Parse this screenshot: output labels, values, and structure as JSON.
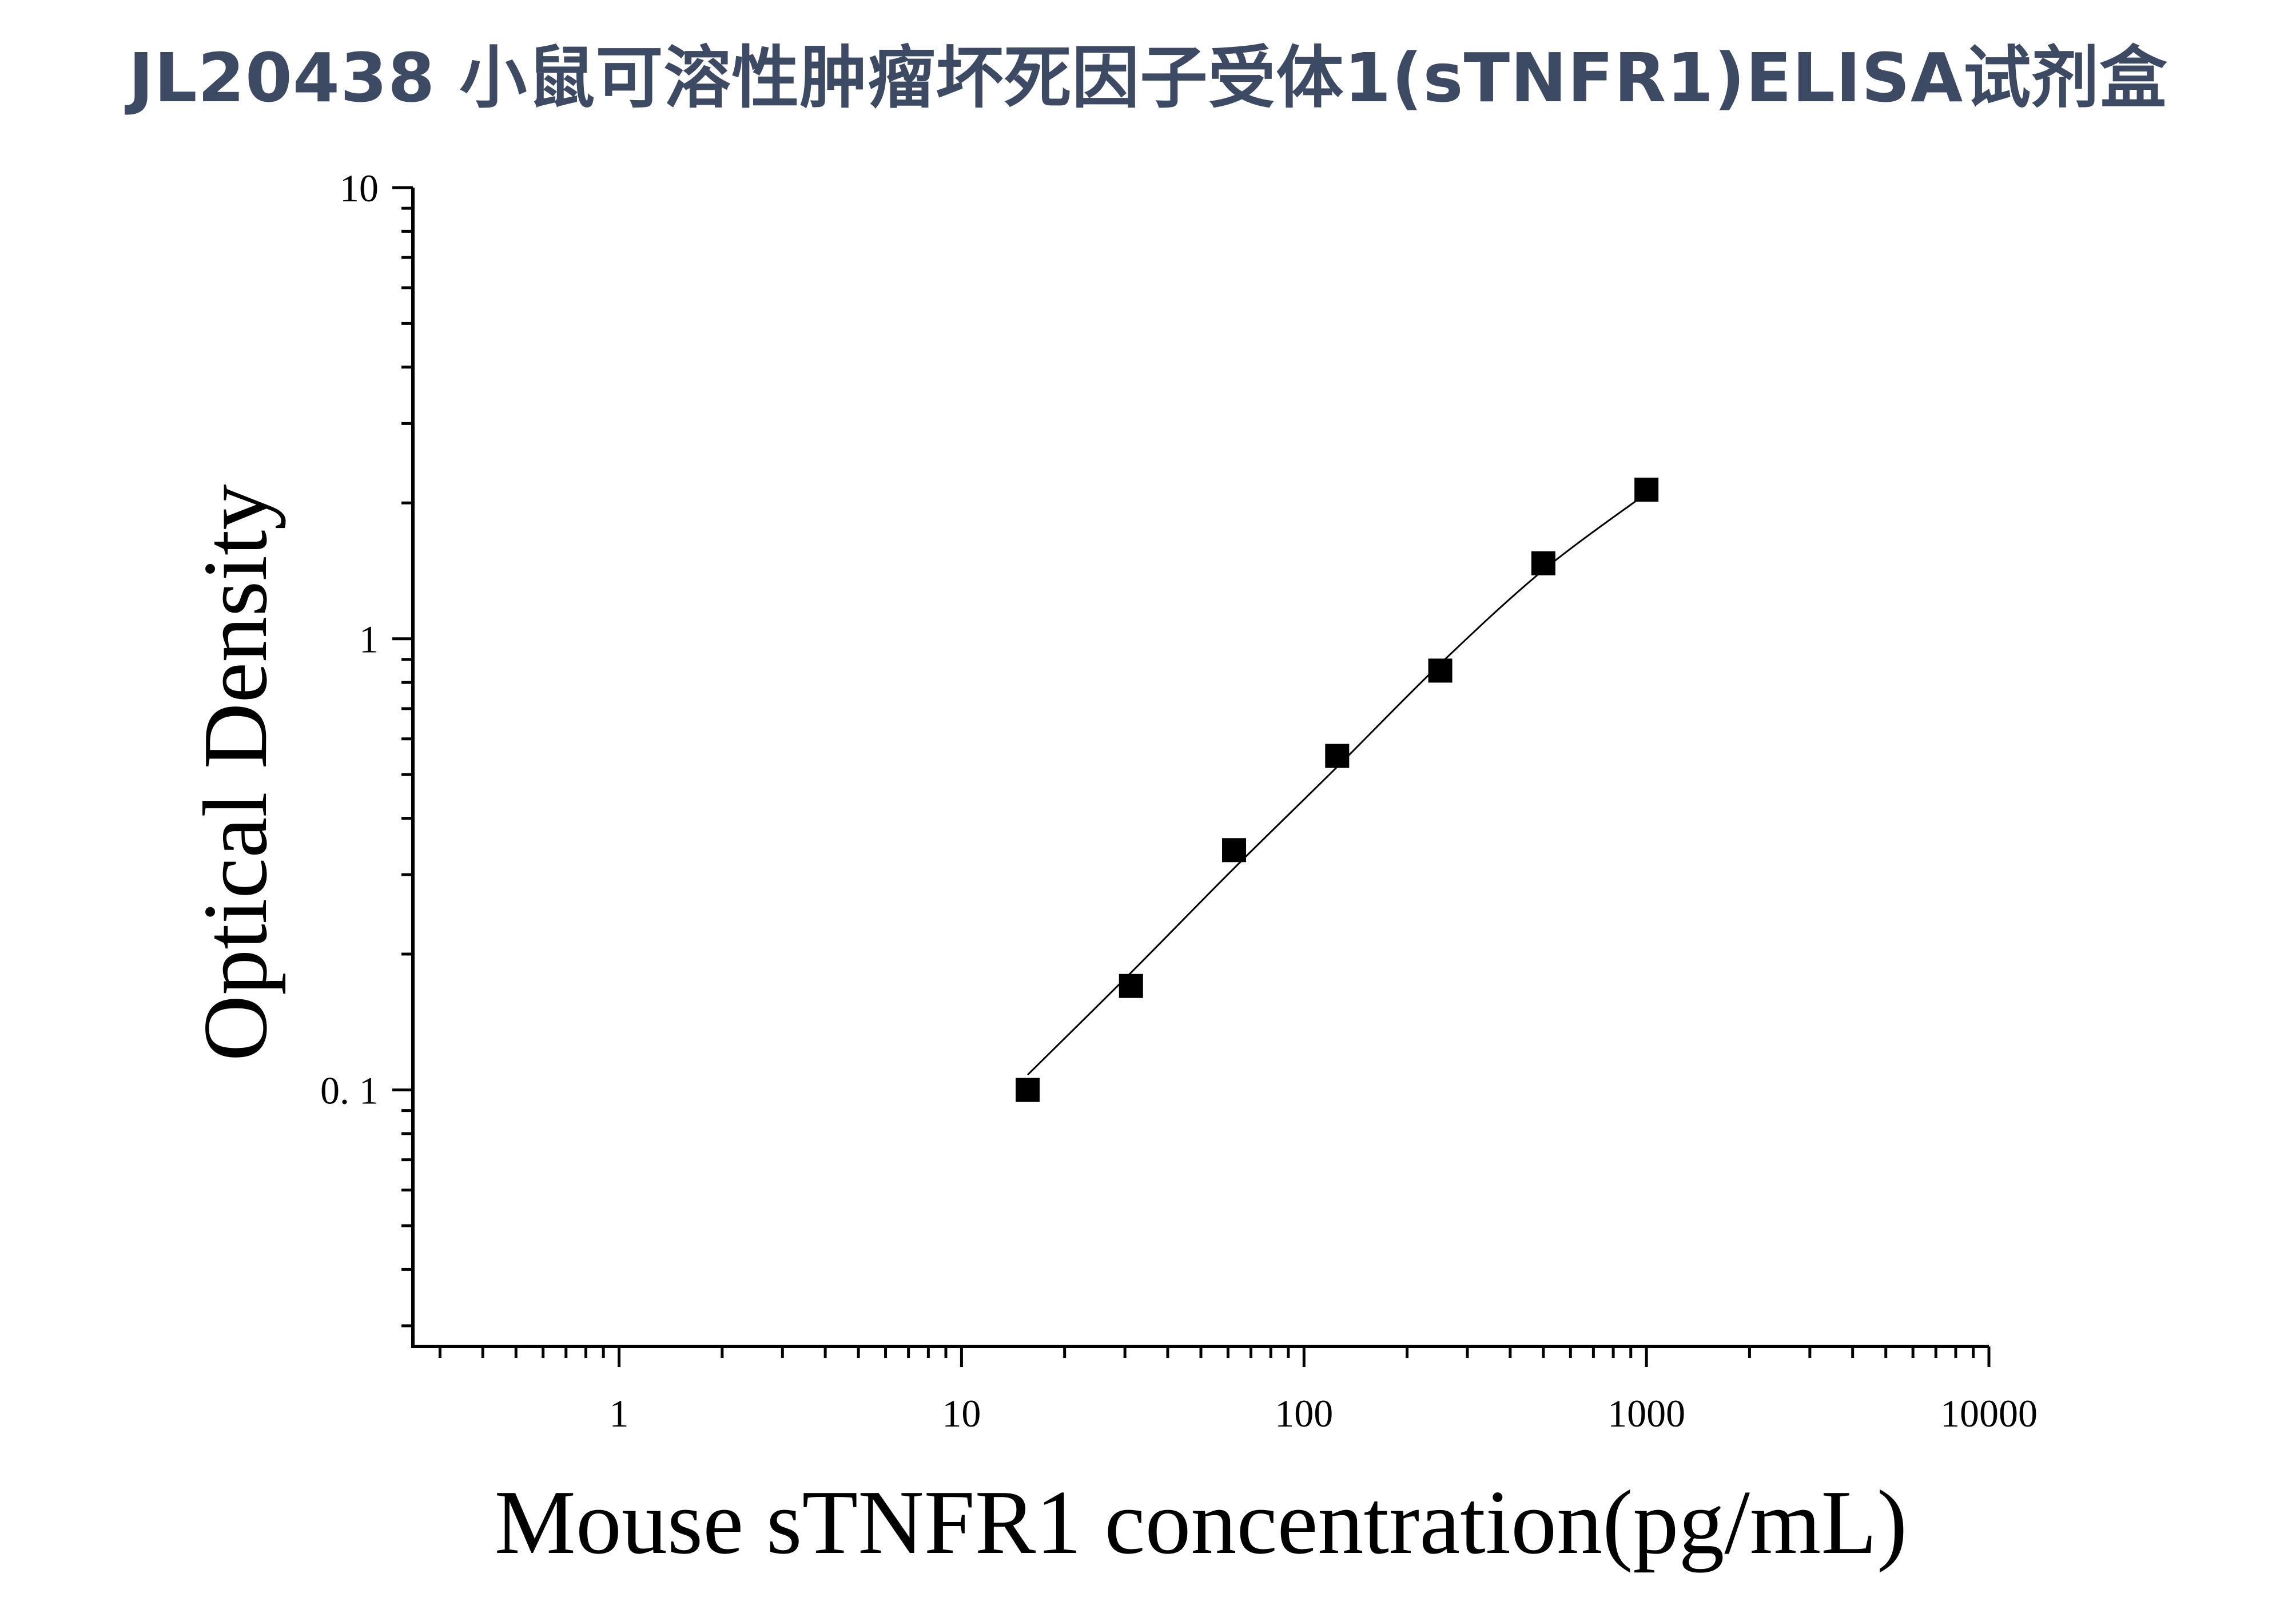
{
  "chart_data": {
    "type": "scatter",
    "title": "JL20438 小鼠可溶性肿瘤坏死因子受体1(sTNFR1)ELISA试剂盒",
    "xlabel": "Mouse sTNFR1 concentration(pg/mL)",
    "ylabel": "Optical Density",
    "x_scale": "log",
    "y_scale": "log",
    "xlim": [
      0.25,
      10000
    ],
    "ylim": [
      0.027,
      10
    ],
    "x_ticks": [
      "1",
      "10",
      "100",
      "1000",
      "10000"
    ],
    "y_ticks": [
      "0. 1",
      "1",
      "10"
    ],
    "grid": false,
    "marker": "square",
    "marker_color": "#000000",
    "line_color": "#000000",
    "points": [
      {
        "x": 15.6,
        "y": 0.1
      },
      {
        "x": 31.25,
        "y": 0.17
      },
      {
        "x": 62.5,
        "y": 0.34
      },
      {
        "x": 125,
        "y": 0.55
      },
      {
        "x": 250,
        "y": 0.85
      },
      {
        "x": 500,
        "y": 1.47
      },
      {
        "x": 1000,
        "y": 2.14
      }
    ],
    "fit_curve": [
      {
        "x": 15.6,
        "y": 0.108
      },
      {
        "x": 31.25,
        "y": 0.182
      },
      {
        "x": 62.5,
        "y": 0.31
      },
      {
        "x": 125,
        "y": 0.52
      },
      {
        "x": 250,
        "y": 0.88
      },
      {
        "x": 500,
        "y": 1.42
      },
      {
        "x": 1000,
        "y": 2.1
      }
    ]
  }
}
